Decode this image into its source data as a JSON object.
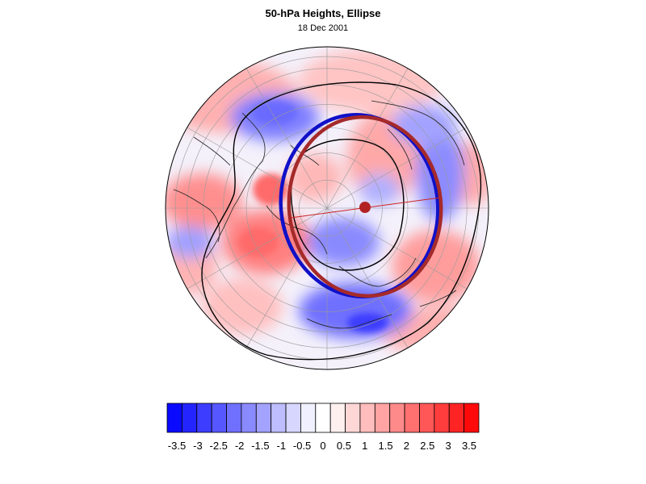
{
  "title": "50-hPa Heights, Ellipse",
  "subtitle": "18 Dec 2001",
  "colorbar": {
    "tick_labels": [
      "-3.5",
      "-3",
      "-2.5",
      "-2",
      "-1.5",
      "-1",
      "-0.5",
      "0",
      "0.5",
      "1",
      "1.5",
      "2",
      "2.5",
      "3",
      "3.5"
    ],
    "range": [
      -3.5,
      3.5
    ],
    "colors": [
      "#0a0aff",
      "#2424ff",
      "#3d3dff",
      "#5757ff",
      "#7070ff",
      "#8a8aff",
      "#a3a3ff",
      "#bdbdff",
      "#d6d6ff",
      "#f0f0ff",
      "#ffffff",
      "#fff0f0",
      "#ffd6d6",
      "#ffbdbd",
      "#ffa3a3",
      "#ff8a8a",
      "#ff7070",
      "#ff5757",
      "#ff3d3d",
      "#ff2424",
      "#ff0a0a"
    ]
  },
  "map": {
    "projection": "orthographic polar, north pole",
    "field": "50-hPa height anomaly",
    "colors": {
      "negative": "#5a5aff",
      "positive": "#ff6b6b",
      "ellipse_blue": "#0000cc",
      "ellipse_red": "#a52a2a",
      "center_dot": "#b22222"
    }
  }
}
